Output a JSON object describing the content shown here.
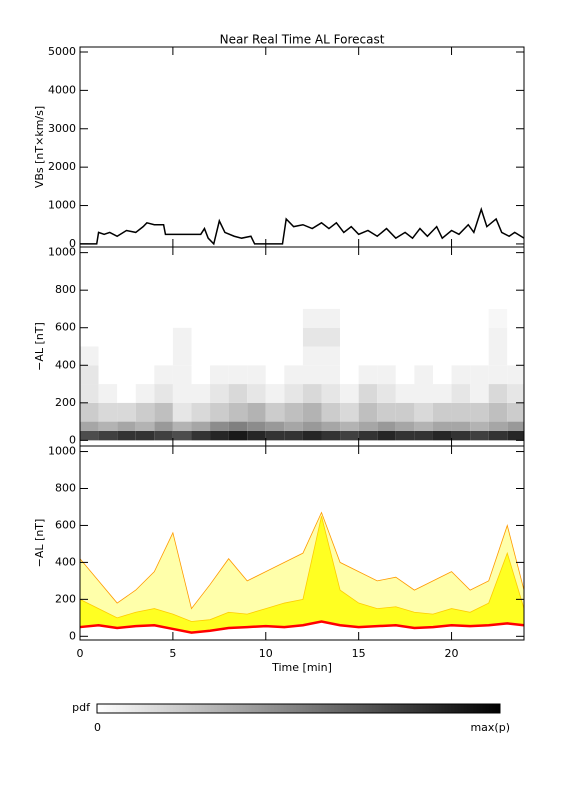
{
  "chart_data": [
    {
      "type": "line",
      "title": "Near Real Time AL Forecast",
      "ylabel": "VBs [nT×km/s]",
      "xlim": [
        0,
        23.9
      ],
      "ylim": [
        -80,
        5130
      ],
      "yticks": [
        0,
        1000,
        2000,
        3000,
        4000,
        5000
      ],
      "color": "#000000",
      "x": [
        0,
        0.9,
        1.0,
        1.3,
        1.6,
        2.0,
        2.5,
        3.0,
        3.4,
        3.6,
        4.0,
        4.5,
        4.6,
        6.5,
        6.7,
        6.9,
        7.2,
        7.5,
        7.8,
        8.3,
        8.7,
        9.2,
        9.4,
        10.9,
        11.1,
        11.5,
        12.0,
        12.5,
        13.0,
        13.4,
        13.8,
        14.2,
        14.6,
        15.0,
        15.5,
        16.0,
        16.5,
        17.0,
        17.5,
        17.9,
        18.3,
        18.7,
        19.2,
        19.5,
        20.0,
        20.4,
        20.9,
        21.2,
        21.6,
        21.9,
        22.4,
        22.7,
        23.1,
        23.4,
        23.9
      ],
      "values": [
        0,
        0,
        300,
        250,
        300,
        200,
        350,
        300,
        450,
        550,
        500,
        500,
        250,
        250,
        400,
        150,
        0,
        600,
        300,
        200,
        150,
        200,
        0,
        0,
        650,
        450,
        500,
        400,
        550,
        400,
        550,
        300,
        450,
        250,
        350,
        200,
        400,
        150,
        300,
        150,
        400,
        200,
        450,
        150,
        350,
        250,
        500,
        300,
        900,
        450,
        650,
        300,
        200,
        300,
        150
      ]
    },
    {
      "type": "heatmap",
      "ylabel": "−AL [nT]",
      "xlim": [
        0,
        23.9
      ],
      "ylim": [
        -30,
        1030
      ],
      "yticks": [
        0,
        200,
        400,
        600,
        800,
        1000
      ],
      "xbins": [
        0,
        1,
        2,
        3,
        4,
        5,
        6,
        7,
        8,
        9,
        10,
        11,
        12,
        13,
        14,
        15,
        16,
        17,
        18,
        19,
        20,
        21,
        22,
        23,
        23.9
      ],
      "ybins": [
        0,
        50,
        100,
        200,
        300,
        400,
        500,
        600,
        700
      ],
      "z": [
        [
          0.7,
          0.75,
          0.8,
          0.8,
          0.75,
          0.7,
          0.8,
          0.85,
          0.9,
          0.85,
          0.8,
          0.8,
          0.85,
          0.8,
          0.75,
          0.8,
          0.85,
          0.8,
          0.8,
          0.85,
          0.8,
          0.75,
          0.8,
          0.85
        ],
        [
          0.35,
          0.3,
          0.35,
          0.3,
          0.4,
          0.3,
          0.35,
          0.45,
          0.5,
          0.45,
          0.4,
          0.35,
          0.4,
          0.35,
          0.3,
          0.35,
          0.4,
          0.35,
          0.3,
          0.35,
          0.35,
          0.3,
          0.35,
          0.4
        ],
        [
          0.2,
          0.15,
          0.15,
          0.2,
          0.25,
          0.1,
          0.15,
          0.2,
          0.25,
          0.3,
          0.2,
          0.25,
          0.3,
          0.2,
          0.15,
          0.25,
          0.2,
          0.2,
          0.15,
          0.2,
          0.2,
          0.2,
          0.25,
          0.2
        ],
        [
          0.1,
          0.05,
          0,
          0.05,
          0.1,
          0.05,
          0.05,
          0.1,
          0.15,
          0.1,
          0.05,
          0.1,
          0.15,
          0.1,
          0.05,
          0.15,
          0.1,
          0.05,
          0.05,
          0.05,
          0.1,
          0.05,
          0.15,
          0.1
        ],
        [
          0.1,
          0,
          0,
          0,
          0.05,
          0.05,
          0,
          0.05,
          0.05,
          0.05,
          0,
          0.05,
          0.05,
          0.05,
          0,
          0.05,
          0.05,
          0,
          0.05,
          0,
          0.05,
          0.05,
          0.05,
          0.05
        ],
        [
          0.05,
          0,
          0,
          0,
          0,
          0.05,
          0,
          0,
          0,
          0,
          0,
          0,
          0.05,
          0.05,
          0,
          0,
          0,
          0,
          0,
          0,
          0,
          0,
          0.05,
          0
        ],
        [
          0,
          0,
          0,
          0,
          0,
          0.05,
          0,
          0,
          0,
          0,
          0,
          0,
          0.1,
          0.1,
          0,
          0,
          0,
          0,
          0,
          0,
          0,
          0,
          0.05,
          0
        ],
        [
          0,
          0,
          0,
          0,
          0,
          0,
          0,
          0,
          0,
          0,
          0,
          0,
          0.05,
          0.05,
          0,
          0,
          0,
          0,
          0,
          0,
          0,
          0,
          0.03,
          0
        ]
      ]
    },
    {
      "type": "band",
      "ylabel": "−AL [nT]",
      "xlabel": "Time [min]",
      "xlim": [
        0,
        23.9
      ],
      "xticks": [
        0,
        5,
        10,
        15,
        20
      ],
      "ylim": [
        -20,
        1030
      ],
      "yticks": [
        0,
        200,
        400,
        600,
        800,
        1000
      ],
      "x": [
        0,
        1,
        2,
        3,
        4,
        5,
        6,
        7,
        8,
        9,
        10,
        11,
        12,
        13,
        14,
        15,
        16,
        17,
        18,
        19,
        20,
        21,
        22,
        23,
        23.9
      ],
      "median": {
        "color": "#ff0000",
        "values": [
          50,
          60,
          45,
          55,
          60,
          40,
          20,
          30,
          45,
          50,
          55,
          50,
          60,
          80,
          60,
          50,
          55,
          60,
          45,
          50,
          60,
          55,
          60,
          70,
          60
        ]
      },
      "bands": [
        {
          "color": "#ffffaa",
          "edge": "#ff9900",
          "upper": [
            420,
            300,
            180,
            250,
            350,
            560,
            150,
            280,
            420,
            300,
            350,
            400,
            450,
            670,
            400,
            350,
            300,
            320,
            250,
            300,
            350,
            250,
            300,
            600,
            250
          ]
        },
        {
          "color": "#ffff22",
          "edge": "#ffcc00",
          "upper": [
            200,
            150,
            100,
            130,
            150,
            120,
            80,
            90,
            130,
            120,
            150,
            180,
            200,
            650,
            250,
            180,
            150,
            160,
            130,
            120,
            150,
            130,
            180,
            450,
            150
          ]
        }
      ]
    }
  ],
  "colorbar": {
    "label": "pdf",
    "min_label": "0",
    "max_label": "max(p)"
  }
}
